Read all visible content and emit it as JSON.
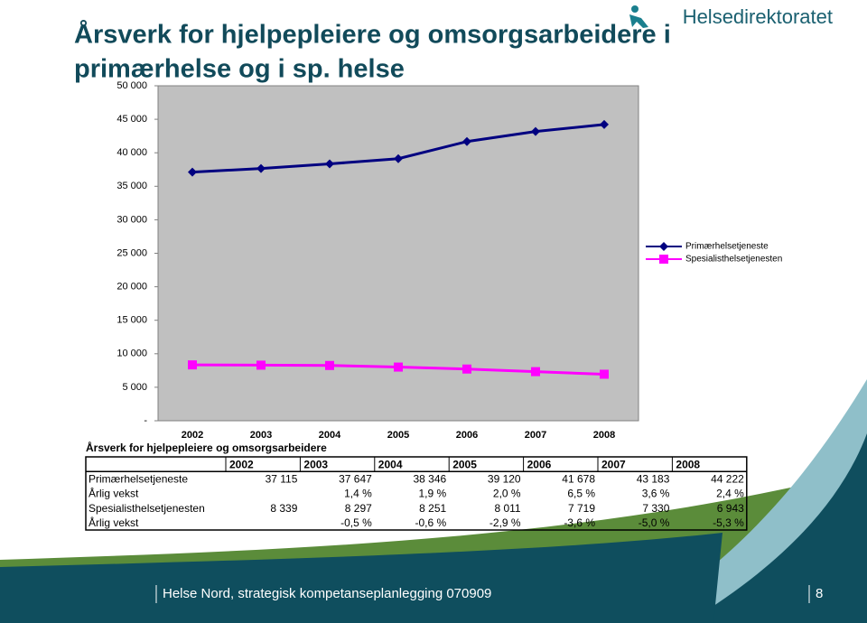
{
  "logo": "Helsedirektoratet",
  "title": [
    "Årsverk for hjelpepleiere og omsorgsarbeidere i",
    "primærhelse og i sp. helse"
  ],
  "chart_data": {
    "type": "line",
    "categories": [
      "2002",
      "2003",
      "2004",
      "2005",
      "2006",
      "2007",
      "2008"
    ],
    "series": [
      {
        "name": "Primærhelsetjeneste",
        "color": "#000080",
        "marker": "diamond",
        "values": [
          37115,
          37647,
          38346,
          39120,
          41678,
          43183,
          44222
        ]
      },
      {
        "name": "Spesialisthelsetjenesten",
        "color": "#ff00ff",
        "marker": "square",
        "values": [
          8339,
          8297,
          8251,
          8011,
          7719,
          7330,
          6943
        ]
      }
    ],
    "ylim": [
      0,
      50000
    ],
    "yticks": [
      {
        "value": 0,
        "label": "-"
      },
      {
        "value": 5000,
        "label": "5 000"
      },
      {
        "value": 10000,
        "label": "10 000"
      },
      {
        "value": 15000,
        "label": "15 000"
      },
      {
        "value": 20000,
        "label": "20 000"
      },
      {
        "value": 25000,
        "label": "25 000"
      },
      {
        "value": 30000,
        "label": "30 000"
      },
      {
        "value": 35000,
        "label": "35 000"
      },
      {
        "value": 40000,
        "label": "40 000"
      },
      {
        "value": 45000,
        "label": "45 000"
      },
      {
        "value": 50000,
        "label": "50 000"
      }
    ],
    "grid": false,
    "legend": "right",
    "background": "#c0c0c0"
  },
  "table": {
    "title": "Årsverk for hjelpepleiere og omsorgsarbeidere",
    "header": [
      "2002",
      "2003",
      "2004",
      "2005",
      "2006",
      "2007",
      "2008"
    ],
    "rows": [
      [
        "Primærhelsetjeneste",
        "37 115",
        "37 647",
        "38 346",
        "39 120",
        "41 678",
        "43 183",
        "44 222"
      ],
      [
        "Årlig vekst",
        null,
        "1,4 %",
        "1,9 %",
        "2,0 %",
        "6,5 %",
        "3,6 %",
        "2,4 %"
      ],
      [
        "Spesialisthelsetjenesten",
        "8 339",
        "8 297",
        "8 251",
        "8 011",
        "7 719",
        "7 330",
        "6 943"
      ],
      [
        "Årlig vekst",
        null,
        "-0,5 %",
        "-0,6 %",
        "-2,9 %",
        "-3,6 %",
        "-5,0 %",
        "-5,3 %"
      ]
    ]
  },
  "footer": {
    "text": "Helse Nord, strategisk kompetanseplanlegging 070909",
    "page": "8"
  }
}
